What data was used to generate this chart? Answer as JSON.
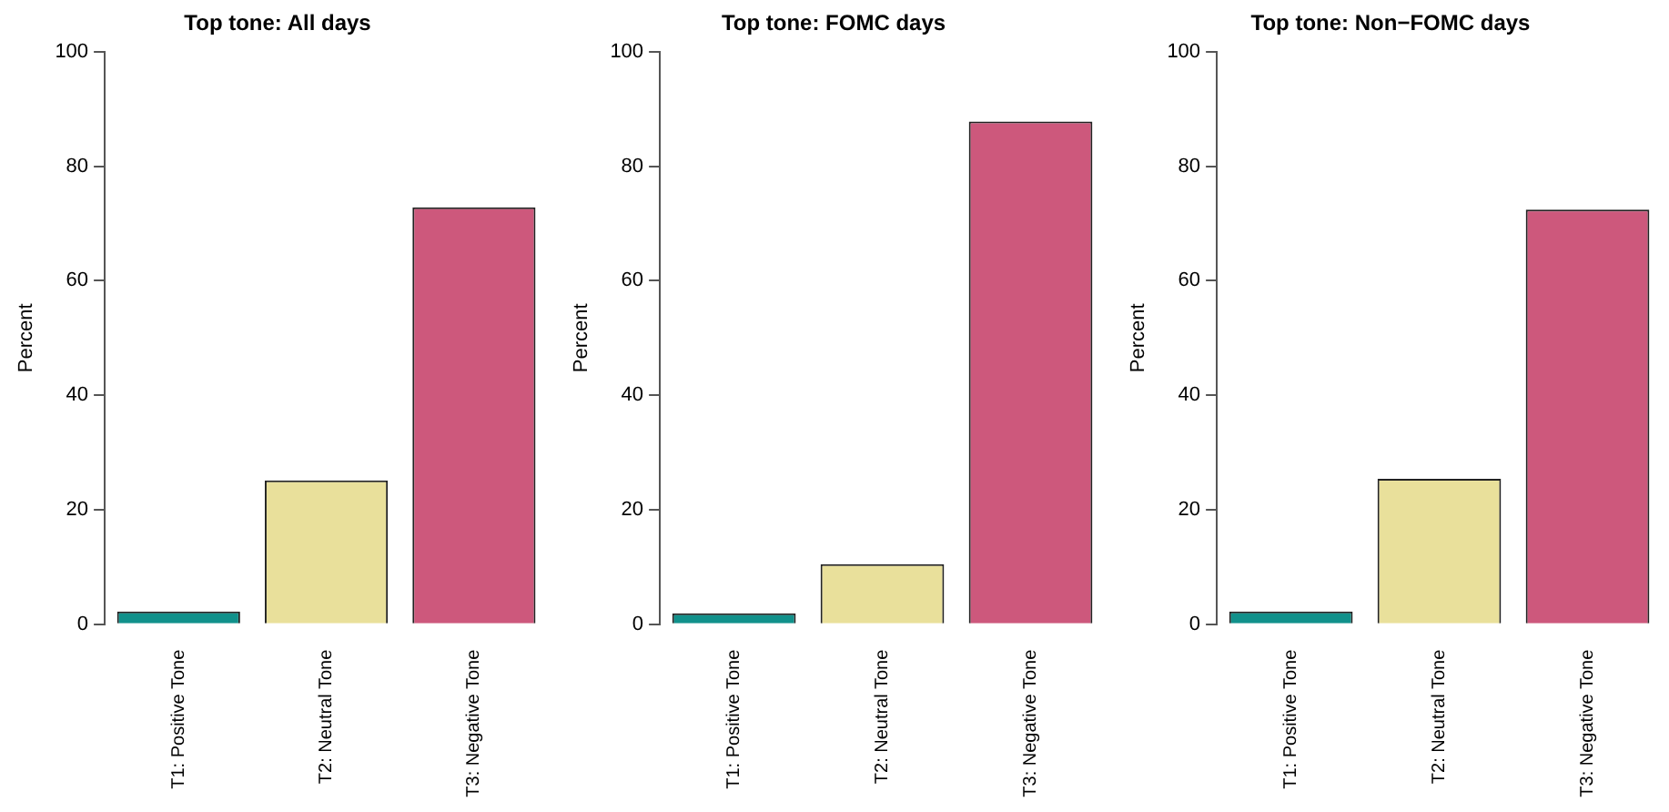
{
  "chart_data": [
    {
      "type": "bar",
      "title": "Top tone: All days",
      "ylabel": "Percent",
      "categories": [
        "T1: Positive Tone",
        "T2: Neutral Tone",
        "T3: Negative Tone"
      ],
      "values": [
        2.2,
        25.1,
        72.8
      ],
      "colors": [
        "#11918b",
        "#e9e09b",
        "#cd587c"
      ],
      "ylim": [
        0,
        100
      ],
      "yticks": [
        0,
        20,
        40,
        60,
        80,
        100
      ]
    },
    {
      "type": "bar",
      "title": "Top tone: FOMC days",
      "ylabel": "Percent",
      "categories": [
        "T1: Positive Tone",
        "T2: Neutral Tone",
        "T3: Negative Tone"
      ],
      "values": [
        1.9,
        10.5,
        87.8
      ],
      "colors": [
        "#11918b",
        "#e9e09b",
        "#cd587c"
      ],
      "ylim": [
        0,
        100
      ],
      "yticks": [
        0,
        20,
        40,
        60,
        80,
        100
      ]
    },
    {
      "type": "bar",
      "title": "Top tone: Non−FOMC days",
      "ylabel": "Percent",
      "categories": [
        "T1: Positive Tone",
        "T2: Neutral Tone",
        "T3: Negative Tone"
      ],
      "values": [
        2.2,
        25.4,
        72.4
      ],
      "colors": [
        "#11918b",
        "#e9e09b",
        "#cd587c"
      ],
      "ylim": [
        0,
        100
      ],
      "yticks": [
        0,
        20,
        40,
        60,
        80,
        100
      ]
    }
  ]
}
